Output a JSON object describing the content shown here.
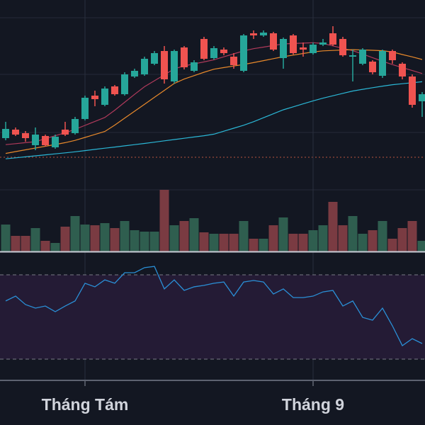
{
  "chart_data": {
    "type": "candlestick",
    "categories": [
      null,
      null,
      null,
      null,
      null,
      null,
      null,
      null,
      "Tháng Tám",
      null,
      null,
      null,
      null,
      null,
      null,
      null,
      null,
      null,
      null,
      null,
      null,
      null,
      null,
      null,
      null,
      null,
      null,
      null,
      null,
      null,
      null,
      "Tháng 9",
      null,
      null,
      null,
      null,
      null,
      null,
      null,
      null,
      null,
      null,
      null
    ],
    "open": [
      75,
      87,
      82,
      65,
      78,
      62,
      87,
      82,
      102,
      135,
      122,
      148,
      137,
      162,
      165,
      180,
      198,
      155,
      203,
      170,
      215,
      188,
      200,
      190,
      170,
      223,
      220,
      223,
      188,
      220,
      203,
      195,
      207,
      223,
      215,
      190,
      180,
      183,
      163,
      198,
      180,
      162,
      127
    ],
    "high": [
      98,
      90,
      85,
      90,
      80,
      80,
      98,
      105,
      135,
      142,
      148,
      150,
      168,
      173,
      190,
      198,
      205,
      200,
      205,
      185,
      218,
      205,
      203,
      195,
      222,
      227,
      227,
      225,
      217,
      222,
      210,
      210,
      215,
      233,
      218,
      200,
      202,
      185,
      200,
      200,
      182,
      165,
      140
    ],
    "low": [
      72,
      78,
      70,
      58,
      63,
      60,
      78,
      80,
      100,
      120,
      120,
      135,
      135,
      160,
      163,
      178,
      152,
      152,
      172,
      168,
      185,
      186,
      192,
      173,
      168,
      215,
      218,
      198,
      173,
      193,
      190,
      193,
      205,
      205,
      190,
      155,
      178,
      165,
      160,
      180,
      158,
      118,
      105
    ],
    "close": [
      88,
      80,
      75,
      80,
      65,
      77,
      80,
      102,
      132,
      130,
      145,
      137,
      165,
      170,
      187,
      195,
      158,
      198,
      175,
      182,
      187,
      202,
      195,
      178,
      220,
      220,
      224,
      200,
      215,
      195,
      200,
      207,
      210,
      207,
      192,
      192,
      200,
      168,
      198,
      185,
      162,
      122,
      137
    ],
    "ylim": [
      0,
      270
    ],
    "up_color": "#26a69a",
    "down_color": "#ef5350",
    "moving_averages": [
      {
        "color": "#b03a5b",
        "values": [
          65.8,
          67.2,
          68.6,
          70,
          74.2,
          78.4,
          82.6,
          87.4,
          93,
          98.6,
          104.2,
          114.4,
          125.6,
          136.8,
          147.6,
          156,
          164.4,
          172.8,
          177,
          179.8,
          182.6,
          185.6,
          189.8,
          194,
          198.2,
          201.3,
          203.5,
          205.8,
          208,
          208.6,
          209.1,
          209.7,
          208.6,
          205.2,
          201.8,
          198.5,
          193.7,
          188.6,
          183.6,
          178.8,
          174.6,
          170.4,
          166.2
        ]
      },
      {
        "color": "#e8892b",
        "values": [
          53.4,
          56,
          58.5,
          61,
          63.5,
          66,
          68.6,
          71.8,
          76,
          80.2,
          84.4,
          93.4,
          103.2,
          113,
          122.8,
          132.6,
          142.4,
          152.2,
          158.4,
          163.2,
          168,
          172.3,
          174.6,
          176.8,
          179,
          181.6,
          184.4,
          187.2,
          190,
          192.2,
          194.5,
          196.7,
          198.2,
          198.8,
          199.4,
          199.9,
          199.5,
          199,
          198.4,
          196.6,
          193,
          189.7,
          186
        ]
      },
      {
        "color": "#2bb7d6",
        "values": [
          45.8,
          47.2,
          48.6,
          50,
          51.4,
          52.8,
          54.2,
          55.7,
          57.4,
          59.1,
          60.8,
          62.4,
          64.1,
          65.8,
          67.5,
          69.3,
          71.2,
          73,
          74.8,
          76.6,
          78.4,
          80.6,
          84.8,
          89,
          93.2,
          98.2,
          103.8,
          109.4,
          115,
          119.2,
          123.4,
          127.6,
          131.4,
          134.8,
          138.2,
          141.5,
          143.9,
          146.2,
          148.4,
          150.4,
          151.8,
          153.2,
          154.6
        ]
      }
    ],
    "volume": {
      "values": [
        38,
        22,
        22,
        33,
        15,
        12,
        35,
        50,
        38,
        37,
        40,
        33,
        43,
        30,
        28,
        28,
        87,
        37,
        43,
        47,
        27,
        25,
        25,
        25,
        43,
        18,
        18,
        37,
        48,
        25,
        25,
        30,
        37,
        70,
        37,
        50,
        25,
        30,
        43,
        18,
        33,
        43,
        15
      ],
      "ylim": [
        0,
        95
      ],
      "up_color": "#2f5e4f",
      "down_color": "#7a3b42"
    },
    "rsi": {
      "values": [
        57.6,
        59.9,
        55.9,
        54.2,
        55.2,
        52.5,
        55.2,
        57.6,
        66,
        64.3,
        67.6,
        66,
        71,
        71,
        73.4,
        74,
        63.3,
        67.6,
        62.6,
        64.3,
        65,
        66,
        66.6,
        59.9,
        66.6,
        67.3,
        66.6,
        60.9,
        63.3,
        59.2,
        59.2,
        59.9,
        61.9,
        62.6,
        55.2,
        57.6,
        49.8,
        48.5,
        54.2,
        45.8,
        36.4,
        39.7,
        37.4
      ],
      "ylim": [
        20.6,
        79.4
      ],
      "levels": [
        30,
        70
      ],
      "color": "#2a8fd6",
      "band_color": "#241b35"
    }
  }
}
